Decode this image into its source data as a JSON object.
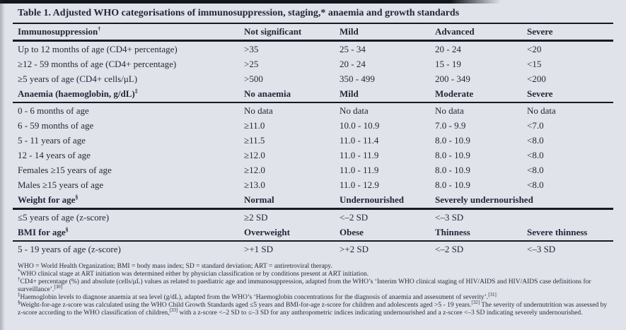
{
  "table": {
    "title": "Table 1. Adjusted WHO categorisations of immunosuppression, staging,* anaemia and growth standards",
    "sections": [
      {
        "header": {
          "label": "Immunosuppression",
          "sup": "†",
          "cols": [
            "Not significant",
            "Mild",
            "Advanced",
            "Severe"
          ]
        },
        "rows": [
          {
            "label": "Up to 12 months of age (CD4+ percentage)",
            "values": [
              ">35",
              "25 - 34",
              "20 - 24",
              "<20"
            ]
          },
          {
            "label": "≥12 - 59 months of age (CD4+ percentage)",
            "values": [
              ">25",
              "20 - 24",
              "15 - 19",
              "<15"
            ]
          },
          {
            "label": "≥5 years of age (CD4+ cells/μL)",
            "values": [
              ">500",
              "350 - 499",
              "200 - 349",
              "<200"
            ]
          }
        ]
      },
      {
        "header": {
          "label": "Anaemia (haemoglobin, g/dL)",
          "sup": "‡",
          "cols": [
            "No anaemia",
            "Mild",
            "Moderate",
            "Severe"
          ]
        },
        "rows": [
          {
            "label": "0 - 6 months of age",
            "values": [
              "No data",
              "No data",
              "No data",
              "No data"
            ]
          },
          {
            "label": "6 - 59 months of age",
            "values": [
              "≥11.0",
              "10.0 - 10.9",
              "7.0 - 9.9",
              "<7.0"
            ]
          },
          {
            "label": "5 - 11 years of age",
            "values": [
              "≥11.5",
              "11.0 - 11.4",
              "8.0 - 10.9",
              "<8.0"
            ]
          },
          {
            "label": "12 - 14 years of age",
            "values": [
              "≥12.0",
              "11.0 - 11.9",
              "8.0 - 10.9",
              "<8.0"
            ]
          },
          {
            "label": "Females ≥15 years of age",
            "values": [
              "≥12.0",
              "11.0 - 11.9",
              "8.0 - 10.9",
              "<8.0"
            ]
          },
          {
            "label": "Males ≥15 years of age",
            "values": [
              "≥13.0",
              "11.0 - 12.9",
              "8.0 - 10.9",
              "<8.0"
            ]
          }
        ]
      },
      {
        "header": {
          "label": "Weight for age",
          "sup": "§",
          "cols": [
            "Normal",
            "Undernourished",
            "Severely undernourished",
            ""
          ]
        },
        "rows": [
          {
            "label": "≤5 years of age (z-score)",
            "values": [
              "≥2 SD",
              "<–2 SD",
              "<–3 SD",
              ""
            ]
          }
        ]
      },
      {
        "header": {
          "label": "BMI for age",
          "sup": "§",
          "cols": [
            "Overweight",
            "Obese",
            "Thinness",
            "Severe thinness"
          ]
        },
        "rows": [
          {
            "label": "5 - 19 years of age (z-score)",
            "values": [
              ">+1 SD",
              ">+2 SD",
              "<–2 SD",
              "<–3 SD"
            ]
          }
        ]
      }
    ],
    "footnotes": [
      {
        "marker": "",
        "text": "WHO = World Health Organization; BMI = body mass index; SD = standard deviation; ART = antiretroviral therapy."
      },
      {
        "marker": "*",
        "text": "WHO clinical stage at ART initiation was determined either by physician classification or by conditions present at ART initiation."
      },
      {
        "marker": "†",
        "text": "CD4+ percentage (%) and absolute (cells/μL) values as related to paediatric age and immunosuppression, adapted from the WHO’s ‘Interim WHO clinical staging of HIV/AIDS and HIV/AIDS case definitions for surveillance’.[30]"
      },
      {
        "marker": "‡",
        "text": "Haemoglobin levels to diagnose anaemia at sea level (g/dL), adapted from the WHO’s ‘Haemoglobin concentrations for the diagnosis of anaemia and assessment of severity’.[31]"
      },
      {
        "marker": "§",
        "text": "Weight-for-age z-score was calculated using the WHO Child Growth Standards aged ≤5 years and BMI-for-age z-score for children and adolescents aged >5 - 19 years.[32] The severity of undernutrition was assessed by z-score according to the WHO classification of children,[33] with a z-score <–2 SD to ≤–3 SD for any anthropometric indices indicating undernourished and a z-score <–3 SD indicating severely undernourished."
      }
    ]
  }
}
